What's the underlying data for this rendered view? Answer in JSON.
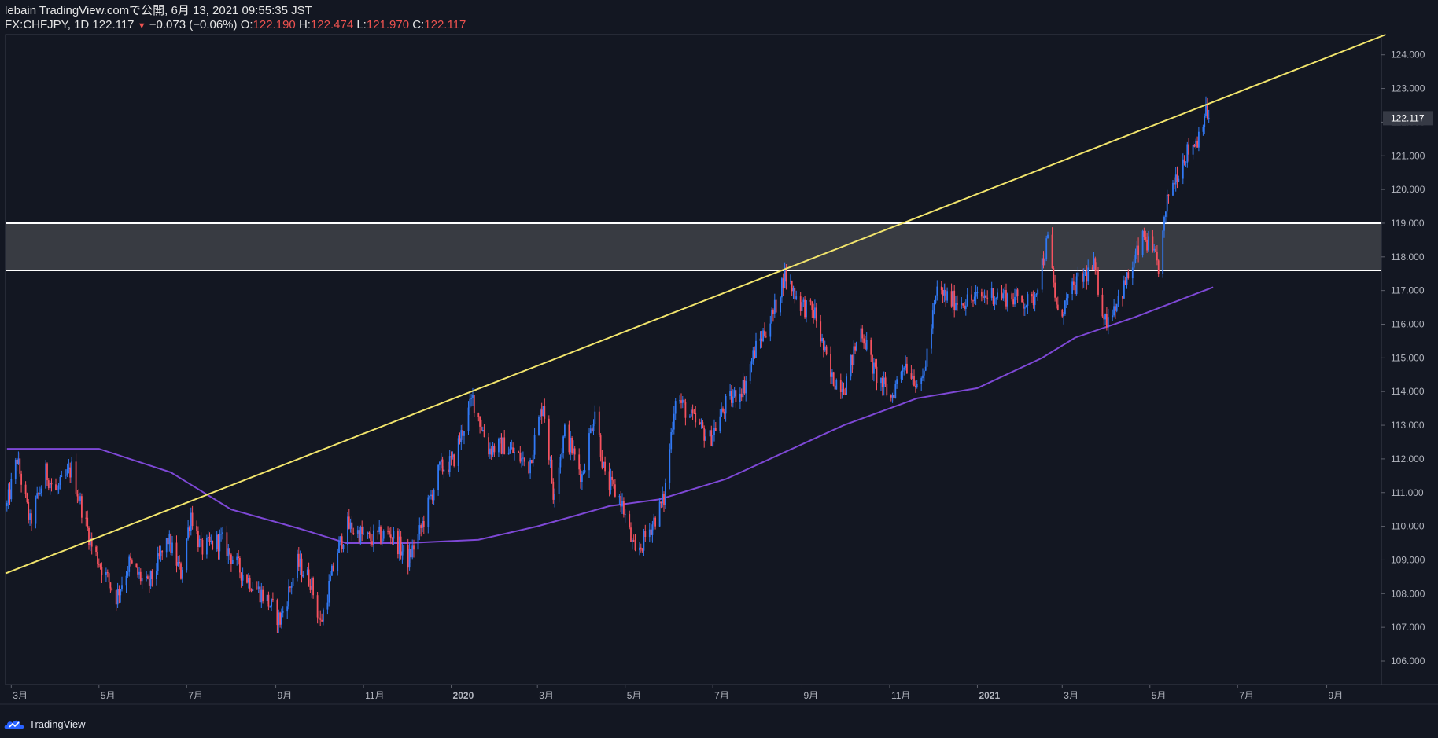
{
  "header": {
    "line1": "lebain TradingView.comで公開, 6月 13, 2021 09:55:35 JST",
    "symbol": "FX:CHFJPY, 1D 122.117",
    "change_arrow": "▼",
    "change": "−0.073 (−0.06%)",
    "open_label": "O:",
    "open": "122.190",
    "high_label": "H:",
    "high": "122.474",
    "low_label": "L:",
    "low": "121.970",
    "close_label": "C:",
    "close": "122.117"
  },
  "footer": {
    "brand": "TradingView"
  },
  "colors": {
    "background": "#131722",
    "up": "#3179f5",
    "down": "#f7525f",
    "trendline": "#f2e56c",
    "moving_average": "#7e48d6",
    "zone_fill": "#3a3d45",
    "zone_border": "#ffffff",
    "last_price_label": "#363a45"
  },
  "chart_data": {
    "type": "candlestick",
    "symbol": "FX:CHFJPY",
    "timeframe": "1D",
    "ylim": [
      105.3,
      124.6
    ],
    "y_ticks": [
      "124.000",
      "123.000",
      "122.000",
      "121.000",
      "120.000",
      "119.000",
      "118.000",
      "117.000",
      "116.000",
      "115.000",
      "114.000",
      "113.000",
      "112.000",
      "111.000",
      "110.000",
      "109.000",
      "108.000",
      "107.000",
      "106.000"
    ],
    "x_range": [
      "2019-02-25",
      "2021-10-09"
    ],
    "x_ticks": [
      {
        "label": "3月",
        "date": "2019-03-01"
      },
      {
        "label": "5月",
        "date": "2019-05-01"
      },
      {
        "label": "7月",
        "date": "2019-07-01"
      },
      {
        "label": "9月",
        "date": "2019-09-01"
      },
      {
        "label": "11月",
        "date": "2019-11-01"
      },
      {
        "label": "2020",
        "date": "2020-01-01"
      },
      {
        "label": "3月",
        "date": "2020-03-01"
      },
      {
        "label": "5月",
        "date": "2020-05-01"
      },
      {
        "label": "7月",
        "date": "2020-07-01"
      },
      {
        "label": "9月",
        "date": "2020-09-01"
      },
      {
        "label": "11月",
        "date": "2020-11-01"
      },
      {
        "label": "2021",
        "date": "2021-01-01"
      },
      {
        "label": "3月",
        "date": "2021-03-01"
      },
      {
        "label": "5月",
        "date": "2021-05-01"
      },
      {
        "label": "7月",
        "date": "2021-07-01"
      },
      {
        "label": "9月",
        "date": "2021-09-01"
      }
    ],
    "last_price": "122.117",
    "price_path": [
      {
        "date": "2019-02-26",
        "close": 110.6
      },
      {
        "date": "2019-03-05",
        "close": 112.0
      },
      {
        "date": "2019-03-14",
        "close": 110.1
      },
      {
        "date": "2019-03-25",
        "close": 111.6
      },
      {
        "date": "2019-04-01",
        "close": 111.0
      },
      {
        "date": "2019-04-12",
        "close": 111.7
      },
      {
        "date": "2019-04-26",
        "close": 109.4
      },
      {
        "date": "2019-05-13",
        "close": 107.9
      },
      {
        "date": "2019-05-22",
        "close": 108.9
      },
      {
        "date": "2019-06-04",
        "close": 108.2
      },
      {
        "date": "2019-06-18",
        "close": 109.6
      },
      {
        "date": "2019-06-27",
        "close": 108.6
      },
      {
        "date": "2019-07-04",
        "close": 110.4
      },
      {
        "date": "2019-07-11",
        "close": 109.3
      },
      {
        "date": "2019-07-25",
        "close": 109.6
      },
      {
        "date": "2019-08-07",
        "close": 108.7
      },
      {
        "date": "2019-08-26",
        "close": 107.8
      },
      {
        "date": "2019-09-04",
        "close": 107.2
      },
      {
        "date": "2019-09-16",
        "close": 108.9
      },
      {
        "date": "2019-09-25",
        "close": 108.4
      },
      {
        "date": "2019-10-02",
        "close": 107.1
      },
      {
        "date": "2019-10-14",
        "close": 109.3
      },
      {
        "date": "2019-10-21",
        "close": 110.0
      },
      {
        "date": "2019-11-05",
        "close": 109.6
      },
      {
        "date": "2019-11-20",
        "close": 109.8
      },
      {
        "date": "2019-12-02",
        "close": 109.0
      },
      {
        "date": "2019-12-10",
        "close": 109.8
      },
      {
        "date": "2019-12-24",
        "close": 111.7
      },
      {
        "date": "2020-01-02",
        "close": 111.9
      },
      {
        "date": "2020-01-16",
        "close": 113.8
      },
      {
        "date": "2020-01-27",
        "close": 112.3
      },
      {
        "date": "2020-02-07",
        "close": 112.4
      },
      {
        "date": "2020-02-24",
        "close": 111.8
      },
      {
        "date": "2020-03-05",
        "close": 113.7
      },
      {
        "date": "2020-03-12",
        "close": 111.0
      },
      {
        "date": "2020-03-20",
        "close": 112.8
      },
      {
        "date": "2020-04-01",
        "close": 111.5
      },
      {
        "date": "2020-04-10",
        "close": 113.5
      },
      {
        "date": "2020-04-17",
        "close": 111.4
      },
      {
        "date": "2020-04-28",
        "close": 110.8
      },
      {
        "date": "2020-05-08",
        "close": 109.1
      },
      {
        "date": "2020-05-19",
        "close": 110.0
      },
      {
        "date": "2020-05-28",
        "close": 110.8
      },
      {
        "date": "2020-06-05",
        "close": 113.9
      },
      {
        "date": "2020-06-16",
        "close": 113.2
      },
      {
        "date": "2020-06-29",
        "close": 112.6
      },
      {
        "date": "2020-07-10",
        "close": 113.6
      },
      {
        "date": "2020-07-23",
        "close": 114.2
      },
      {
        "date": "2020-07-30",
        "close": 115.2
      },
      {
        "date": "2020-08-12",
        "close": 116.3
      },
      {
        "date": "2020-08-20",
        "close": 117.5
      },
      {
        "date": "2020-08-31",
        "close": 116.6
      },
      {
        "date": "2020-09-10",
        "close": 116.3
      },
      {
        "date": "2020-09-21",
        "close": 114.4
      },
      {
        "date": "2020-10-01",
        "close": 114.2
      },
      {
        "date": "2020-10-12",
        "close": 115.9
      },
      {
        "date": "2020-10-21",
        "close": 114.6
      },
      {
        "date": "2020-11-02",
        "close": 113.8
      },
      {
        "date": "2020-11-11",
        "close": 114.9
      },
      {
        "date": "2020-11-23",
        "close": 114.1
      },
      {
        "date": "2020-12-04",
        "close": 117.0
      },
      {
        "date": "2020-12-14",
        "close": 116.7
      },
      {
        "date": "2020-12-28",
        "close": 116.7
      },
      {
        "date": "2021-01-11",
        "close": 116.9
      },
      {
        "date": "2021-01-25",
        "close": 116.8
      },
      {
        "date": "2021-02-08",
        "close": 116.6
      },
      {
        "date": "2021-02-19",
        "close": 118.5
      },
      {
        "date": "2021-02-26",
        "close": 116.2
      },
      {
        "date": "2021-03-11",
        "close": 117.2
      },
      {
        "date": "2021-03-23",
        "close": 117.7
      },
      {
        "date": "2021-03-31",
        "close": 116.1
      },
      {
        "date": "2021-04-12",
        "close": 117.0
      },
      {
        "date": "2021-04-27",
        "close": 118.6
      },
      {
        "date": "2021-05-07",
        "close": 117.7
      },
      {
        "date": "2021-05-14",
        "close": 119.9
      },
      {
        "date": "2021-05-25",
        "close": 121.0
      },
      {
        "date": "2021-06-03",
        "close": 121.5
      },
      {
        "date": "2021-06-08",
        "close": 122.3
      },
      {
        "date": "2021-06-14",
        "close": 122.1
      }
    ],
    "moving_average": [
      {
        "date": "2019-02-26",
        "value": 112.3
      },
      {
        "date": "2019-05-01",
        "value": 112.3
      },
      {
        "date": "2019-06-20",
        "value": 111.6
      },
      {
        "date": "2019-08-01",
        "value": 110.5
      },
      {
        "date": "2019-09-20",
        "value": 109.9
      },
      {
        "date": "2019-10-20",
        "value": 109.5
      },
      {
        "date": "2019-12-01",
        "value": 109.5
      },
      {
        "date": "2020-01-20",
        "value": 109.6
      },
      {
        "date": "2020-03-01",
        "value": 110.0
      },
      {
        "date": "2020-04-20",
        "value": 110.6
      },
      {
        "date": "2020-05-25",
        "value": 110.8
      },
      {
        "date": "2020-07-10",
        "value": 111.4
      },
      {
        "date": "2020-08-20",
        "value": 112.2
      },
      {
        "date": "2020-09-30",
        "value": 113.0
      },
      {
        "date": "2020-11-20",
        "value": 113.8
      },
      {
        "date": "2021-01-01",
        "value": 114.1
      },
      {
        "date": "2021-02-15",
        "value": 115.0
      },
      {
        "date": "2021-03-10",
        "value": 115.6
      },
      {
        "date": "2021-04-20",
        "value": 116.2
      },
      {
        "date": "2021-06-14",
        "value": 117.1
      }
    ],
    "drawings": {
      "trendline": [
        {
          "date": "2019-02-25",
          "price": 108.6
        },
        {
          "date": "2021-06-14",
          "price": 122.6
        }
      ],
      "resistance_zone": [
        117.6,
        119.0
      ]
    }
  }
}
